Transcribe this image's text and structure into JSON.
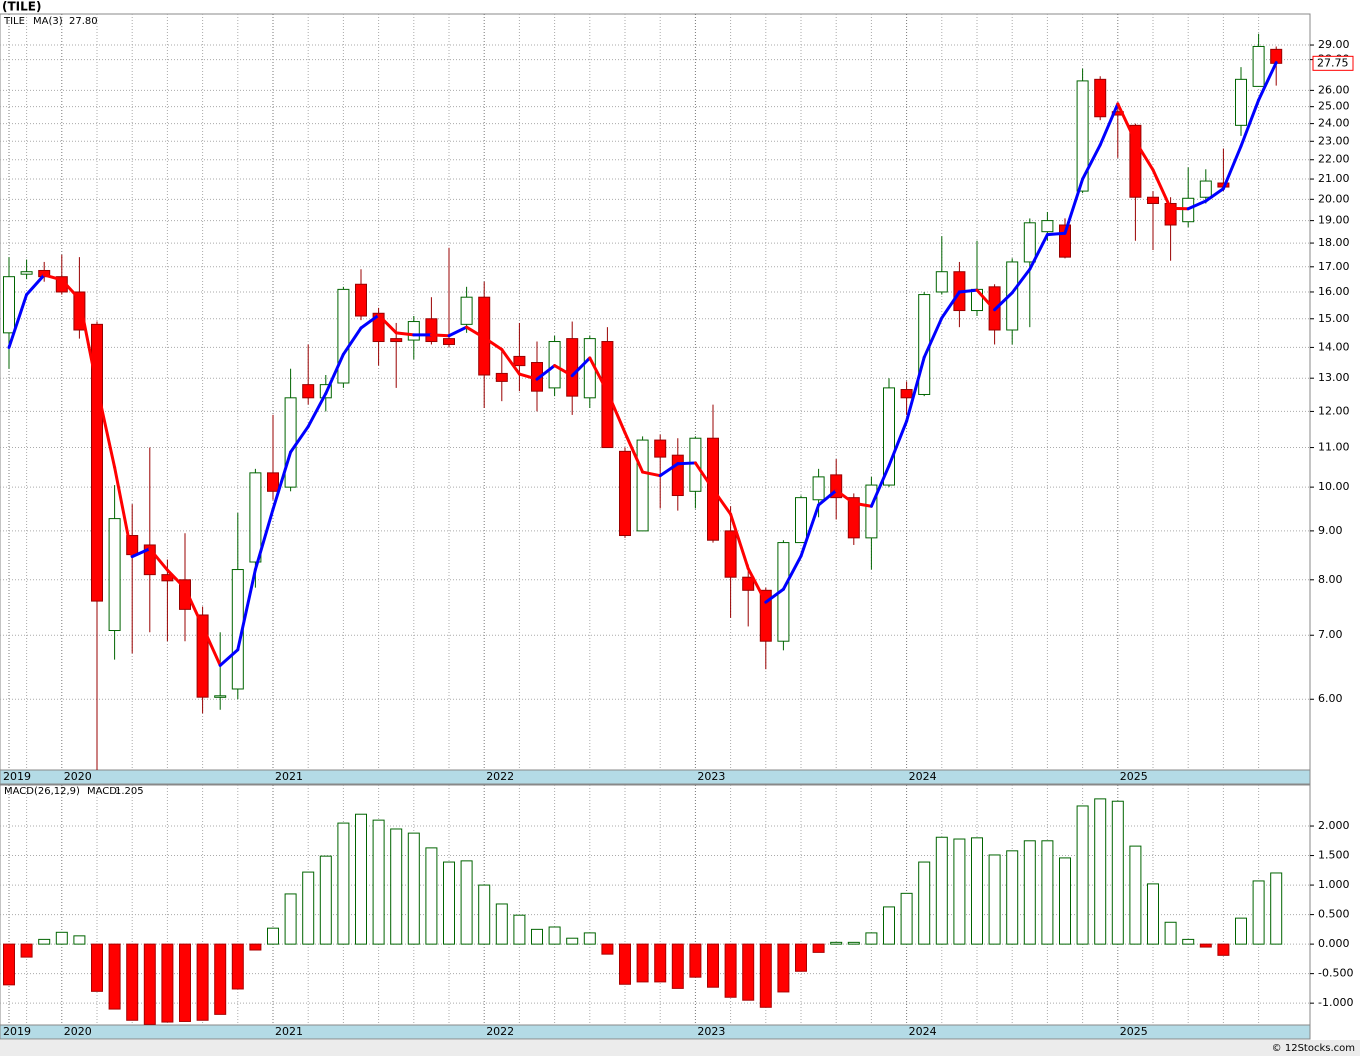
{
  "title": "(TILE)",
  "footer": "© 12Stocks.com",
  "chart_data": [
    {
      "type": "candlestick",
      "legend": "TILE",
      "log_scale": true,
      "grid": true,
      "up_color": "#006400",
      "down_color": "#ff0000",
      "ylim": [
        5.06,
        31.25
      ],
      "yticks": [
        {
          "value": 29,
          "label": "29.00"
        },
        {
          "value": 28,
          "label": "28.00"
        },
        {
          "value": 26,
          "label": "26.00"
        },
        {
          "value": 25,
          "label": "25.00"
        },
        {
          "value": 24,
          "label": "24.00"
        },
        {
          "value": 23,
          "label": "23.00"
        },
        {
          "value": 22,
          "label": "22.00"
        },
        {
          "value": 21,
          "label": "21.00"
        },
        {
          "value": 20,
          "label": "20.00"
        },
        {
          "value": 19,
          "label": "19.00"
        },
        {
          "value": 18,
          "label": "18.00"
        },
        {
          "value": 17,
          "label": "17.00"
        },
        {
          "value": 16,
          "label": "16.00"
        },
        {
          "value": 15,
          "label": "15.00"
        },
        {
          "value": 14,
          "label": "14.00"
        },
        {
          "value": 13,
          "label": "13.00"
        },
        {
          "value": 12,
          "label": "12.00"
        },
        {
          "value": 11,
          "label": "11.00"
        },
        {
          "value": 10,
          "label": "10.00"
        },
        {
          "value": 9,
          "label": "9.00"
        },
        {
          "value": 8,
          "label": "8.00"
        },
        {
          "value": 7,
          "label": "7.00"
        },
        {
          "value": 6,
          "label": "6.00"
        }
      ],
      "categories": [
        "2019",
        null,
        null,
        "2020",
        null,
        null,
        null,
        null,
        null,
        null,
        null,
        null,
        null,
        null,
        null,
        "2021",
        null,
        null,
        null,
        null,
        null,
        null,
        null,
        null,
        null,
        null,
        null,
        "2022",
        null,
        null,
        null,
        null,
        null,
        null,
        null,
        null,
        null,
        null,
        null,
        "2023",
        null,
        null,
        null,
        null,
        null,
        null,
        null,
        null,
        null,
        null,
        null,
        "2024",
        null,
        null,
        null,
        null,
        null,
        null,
        null,
        null,
        null,
        null,
        null,
        "2025",
        null,
        null,
        null,
        null,
        null,
        null,
        null,
        null,
        null
      ],
      "open": [
        14.5,
        16.7,
        16.85,
        16.6,
        16.0,
        14.8,
        7.08,
        8.9,
        8.7,
        8.1,
        8.0,
        7.35,
        6.03,
        6.15,
        8.35,
        10.35,
        10.0,
        12.8,
        12.4,
        12.85,
        16.3,
        15.2,
        14.3,
        14.25,
        15.0,
        14.3,
        14.8,
        15.8,
        13.15,
        13.7,
        13.5,
        12.7,
        14.3,
        12.4,
        14.2,
        10.9,
        9.0,
        11.2,
        10.8,
        9.9,
        11.25,
        9.0,
        8.05,
        7.8,
        6.9,
        8.75,
        9.7,
        10.3,
        9.75,
        8.85,
        10.05,
        12.65,
        12.5,
        16.0,
        16.8,
        15.3,
        16.2,
        14.6,
        17.2,
        18.5,
        18.8,
        20.4,
        26.7,
        24.7,
        23.9,
        20.1,
        19.8,
        18.95,
        20.1,
        20.8,
        23.9,
        26.25,
        28.7
      ],
      "high": [
        17.4,
        17.3,
        17.2,
        17.5,
        17.4,
        14.9,
        10.05,
        9.6,
        11.0,
        8.4,
        8.95,
        7.5,
        7.05,
        9.4,
        10.45,
        11.9,
        13.3,
        14.1,
        13.1,
        16.2,
        16.9,
        15.4,
        14.85,
        15.1,
        15.8,
        17.8,
        16.2,
        16.4,
        13.9,
        14.85,
        14.2,
        14.4,
        14.9,
        14.4,
        14.7,
        11.0,
        11.3,
        11.35,
        11.25,
        11.3,
        12.2,
        9.55,
        8.3,
        7.85,
        8.8,
        9.8,
        10.45,
        10.7,
        9.85,
        10.25,
        13.0,
        12.9,
        16.0,
        18.3,
        17.2,
        18.1,
        16.3,
        17.35,
        19.1,
        19.4,
        19.1,
        27.4,
        26.9,
        25.2,
        24.0,
        20.4,
        20.1,
        21.6,
        21.5,
        22.6,
        27.5,
        29.8,
        28.9
      ],
      "low": [
        13.3,
        16.5,
        16.4,
        15.9,
        14.3,
        5.0,
        6.6,
        6.7,
        7.05,
        6.9,
        6.9,
        5.8,
        5.85,
        6.0,
        7.85,
        9.7,
        9.9,
        12.2,
        12.0,
        12.7,
        14.95,
        13.4,
        12.7,
        13.6,
        14.1,
        14.0,
        14.5,
        12.1,
        12.3,
        12.6,
        12.0,
        12.45,
        11.9,
        12.1,
        11.0,
        8.85,
        9.0,
        9.5,
        9.45,
        9.5,
        8.75,
        7.3,
        7.15,
        6.45,
        6.75,
        8.75,
        9.3,
        9.25,
        8.7,
        8.2,
        10.0,
        11.9,
        12.45,
        15.9,
        14.7,
        15.1,
        14.1,
        14.1,
        14.7,
        18.1,
        17.35,
        20.3,
        24.2,
        22.1,
        18.1,
        17.7,
        17.25,
        18.7,
        19.8,
        20.4,
        23.3,
        26.3,
        26.3
      ],
      "close": [
        16.6,
        16.8,
        16.6,
        16.0,
        14.6,
        7.6,
        9.27,
        8.5,
        8.1,
        7.98,
        7.45,
        6.03,
        6.05,
        8.2,
        10.35,
        9.9,
        12.4,
        12.4,
        12.8,
        16.1,
        15.1,
        14.2,
        14.2,
        14.9,
        14.2,
        14.1,
        15.8,
        13.1,
        12.9,
        13.4,
        12.6,
        14.2,
        12.45,
        14.3,
        11.0,
        8.9,
        11.2,
        10.75,
        9.8,
        11.25,
        8.8,
        8.05,
        7.8,
        6.9,
        8.75,
        9.75,
        10.25,
        9.75,
        8.85,
        10.05,
        12.7,
        12.4,
        15.9,
        16.8,
        15.3,
        16.1,
        14.6,
        17.2,
        18.9,
        19.0,
        17.4,
        26.6,
        24.4,
        24.5,
        20.1,
        19.8,
        18.8,
        20.05,
        20.9,
        20.6,
        26.7,
        28.9,
        27.75
      ],
      "last_close_label": "27.75",
      "series": [
        {
          "name": "MA(3)",
          "rising_color": "#0000ff",
          "falling_color": "#ff0000",
          "last_value_label": "27.80",
          "values": [
            14.0,
            15.9,
            16.67,
            16.47,
            15.73,
            12.73,
            10.49,
            8.46,
            8.62,
            8.19,
            7.84,
            7.15,
            6.51,
            6.76,
            8.2,
            9.48,
            10.88,
            11.57,
            12.53,
            13.77,
            14.67,
            15.13,
            14.5,
            14.43,
            14.43,
            14.4,
            14.7,
            14.33,
            13.93,
            13.13,
            12.97,
            13.4,
            13.08,
            13.65,
            12.58,
            11.4,
            10.37,
            10.28,
            10.58,
            10.6,
            9.95,
            9.37,
            8.22,
            7.58,
            7.82,
            8.47,
            9.58,
            9.92,
            9.62,
            9.55,
            10.53,
            11.72,
            13.67,
            15.03,
            16.0,
            16.07,
            15.33,
            15.97,
            16.9,
            18.37,
            18.43,
            21.0,
            22.8,
            25.17,
            23.0,
            21.47,
            19.57,
            19.55,
            19.92,
            20.52,
            22.73,
            25.4,
            27.8
          ]
        }
      ]
    },
    {
      "type": "bar",
      "legend": "MACD(26,12,9)",
      "value_legend": "MACD:",
      "last_value_label": "1.205",
      "positive_color": "#006400",
      "negative_color": "#ff0000",
      "grid": true,
      "ylim": [
        -1.37,
        2.695
      ],
      "yticks": [
        {
          "value": 2,
          "label": "2.000"
        },
        {
          "value": 1.5,
          "label": "1.500"
        },
        {
          "value": 1,
          "label": "1.000"
        },
        {
          "value": 0.5,
          "label": "0.500"
        },
        {
          "value": 0,
          "label": "0.000"
        },
        {
          "value": -0.5,
          "label": "-0.500"
        },
        {
          "value": -1,
          "label": "-1.000"
        }
      ],
      "categories": [
        "2019",
        null,
        null,
        "2020",
        null,
        null,
        null,
        null,
        null,
        null,
        null,
        null,
        null,
        null,
        null,
        "2021",
        null,
        null,
        null,
        null,
        null,
        null,
        null,
        null,
        null,
        null,
        null,
        "2022",
        null,
        null,
        null,
        null,
        null,
        null,
        null,
        null,
        null,
        null,
        null,
        "2023",
        null,
        null,
        null,
        null,
        null,
        null,
        null,
        null,
        null,
        null,
        null,
        "2024",
        null,
        null,
        null,
        null,
        null,
        null,
        null,
        null,
        null,
        null,
        null,
        "2025",
        null,
        null,
        null,
        null,
        null,
        null,
        null,
        null,
        null
      ],
      "values": [
        -0.69,
        -0.22,
        0.08,
        0.2,
        0.14,
        -0.8,
        -1.1,
        -1.29,
        -1.36,
        -1.32,
        -1.31,
        -1.29,
        -1.19,
        -0.76,
        -0.1,
        0.27,
        0.85,
        1.22,
        1.49,
        2.05,
        2.2,
        2.1,
        1.95,
        1.88,
        1.63,
        1.39,
        1.41,
        1.0,
        0.68,
        0.49,
        0.25,
        0.29,
        0.1,
        0.19,
        -0.17,
        -0.68,
        -0.64,
        -0.64,
        -0.75,
        -0.56,
        -0.73,
        -0.9,
        -0.95,
        -1.07,
        -0.81,
        -0.46,
        -0.14,
        0.03,
        0.03,
        0.19,
        0.63,
        0.86,
        1.39,
        1.81,
        1.78,
        1.8,
        1.51,
        1.58,
        1.75,
        1.75,
        1.46,
        2.34,
        2.46,
        2.42,
        1.66,
        1.02,
        0.37,
        0.08,
        -0.05,
        -0.19,
        0.44,
        1.07,
        1.205
      ]
    }
  ]
}
